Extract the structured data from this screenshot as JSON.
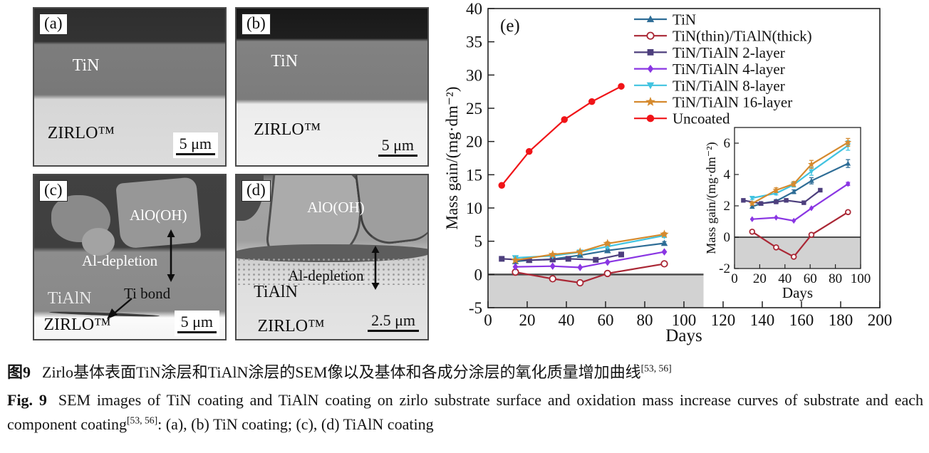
{
  "panels": {
    "a": {
      "label": "(a)",
      "coating": "TiN",
      "substrate": "ZIRLO™",
      "scale": "5 μm"
    },
    "b": {
      "label": "(b)",
      "coating": "TiN",
      "substrate": "ZIRLO™",
      "scale": "5 μm"
    },
    "c": {
      "label": "(c)",
      "oxide": "AlO(OH)",
      "depletion": "Al-depletion",
      "coating": "TiAlN",
      "bond": "Ti bond",
      "substrate": "ZIRLO™",
      "scale": "5 μm"
    },
    "d": {
      "label": "(d)",
      "oxide": "AlO(OH)",
      "depletion": "Al-depletion",
      "coating": "TiAlN",
      "substrate": "ZIRLO™",
      "scale": "2.5 μm"
    }
  },
  "chart_data": {
    "type": "line",
    "panel_label": "(e)",
    "title": "",
    "xlabel": "Days",
    "ylabel": "Mass gain/(mg·dm⁻²)",
    "xlim": [
      0,
      200
    ],
    "xtick_step": 20,
    "ylim": [
      -5,
      40
    ],
    "ytick_step": 5,
    "grid": false,
    "legend_position": "top-right inside",
    "negative_shade": {
      "x_range": [
        0,
        110
      ],
      "y_range": [
        -5,
        0
      ],
      "color": "#d2d2d2"
    },
    "series": [
      {
        "name": "TiN",
        "color": "#2e6d96",
        "marker": "triangle-up",
        "x": [
          14,
          21,
          33,
          47,
          61,
          90
        ],
        "y": [
          1.95,
          2.15,
          2.3,
          2.9,
          3.6,
          4.7
        ],
        "err": [
          0.1,
          0.1,
          0.1,
          0.12,
          0.2,
          0.25
        ]
      },
      {
        "name": "TiN(thin)/TiAlN(thick)",
        "color": "#aa2735",
        "marker": "circle-open",
        "x": [
          14,
          33,
          47,
          61,
          90
        ],
        "y": [
          0.35,
          -0.65,
          -1.25,
          0.15,
          1.6
        ],
        "err": [
          0,
          0,
          0,
          0,
          0
        ]
      },
      {
        "name": "TiN/TiAlN 2-layer",
        "color": "#4d3f7d",
        "marker": "square",
        "x": [
          7,
          21,
          33,
          41,
          55,
          68
        ],
        "y": [
          2.35,
          2.15,
          2.25,
          2.35,
          2.2,
          3.0
        ],
        "err": [
          0,
          0,
          0,
          0,
          0,
          0
        ]
      },
      {
        "name": "TiN/TiAlN 4-layer",
        "color": "#8a36e3",
        "marker": "diamond",
        "x": [
          14,
          33,
          47,
          61,
          90
        ],
        "y": [
          1.15,
          1.25,
          1.05,
          1.85,
          3.4
        ],
        "err": [
          0,
          0,
          0,
          0,
          0.1
        ]
      },
      {
        "name": "TiN/TiAlN 8-layer",
        "color": "#41c3e0",
        "marker": "triangle-down",
        "x": [
          14,
          33,
          47,
          61,
          90
        ],
        "y": [
          2.5,
          2.8,
          3.35,
          4.2,
          5.85
        ],
        "err": [
          0.1,
          0.1,
          0.15,
          0.25,
          0.3
        ]
      },
      {
        "name": "TiN/TiAlN 16-layer",
        "color": "#d58a2e",
        "marker": "star",
        "x": [
          14,
          33,
          47,
          61,
          90
        ],
        "y": [
          2.15,
          3.0,
          3.4,
          4.65,
          6.05
        ],
        "err": [
          0.1,
          0.15,
          0.15,
          0.25,
          0.25
        ]
      },
      {
        "name": "Uncoated",
        "color": "#f01418",
        "marker": "circle",
        "x": [
          7,
          21,
          39,
          53,
          68
        ],
        "y": [
          13.4,
          18.5,
          23.3,
          26.0,
          28.3
        ],
        "err": [
          0,
          0,
          0,
          0,
          0
        ]
      }
    ],
    "inset": {
      "xlabel": "Days",
      "ylabel": "Mass gain/(mg·dm⁻²)",
      "xlim": [
        0,
        100
      ],
      "xticks": [
        0,
        20,
        40,
        60,
        80,
        100
      ],
      "ylim": [
        -2,
        7
      ],
      "yticks": [
        -2,
        0,
        2,
        4,
        6
      ],
      "excluded_series": [
        "Uncoated"
      ],
      "negative_shade": {
        "y_range": [
          -2,
          0
        ],
        "color": "#d2d2d2"
      }
    }
  },
  "caption": {
    "zh_prefix": "图9",
    "zh_text": "Zirlo基体表面TiN涂层和TiAlN涂层的SEM像以及基体和各成分涂层的氧化质量增加曲线",
    "zh_sup": "[53, 56]",
    "en_prefix": "Fig. 9",
    "en_part1": "SEM images of TiN coating and TiAlN coating on zirlo substrate surface and oxidation mass increase curves of substrate and each component coating",
    "en_sup": "[53, 56]",
    "en_part2": ": (a), (b) TiN coating; (c), (d) TiAlN coating"
  }
}
